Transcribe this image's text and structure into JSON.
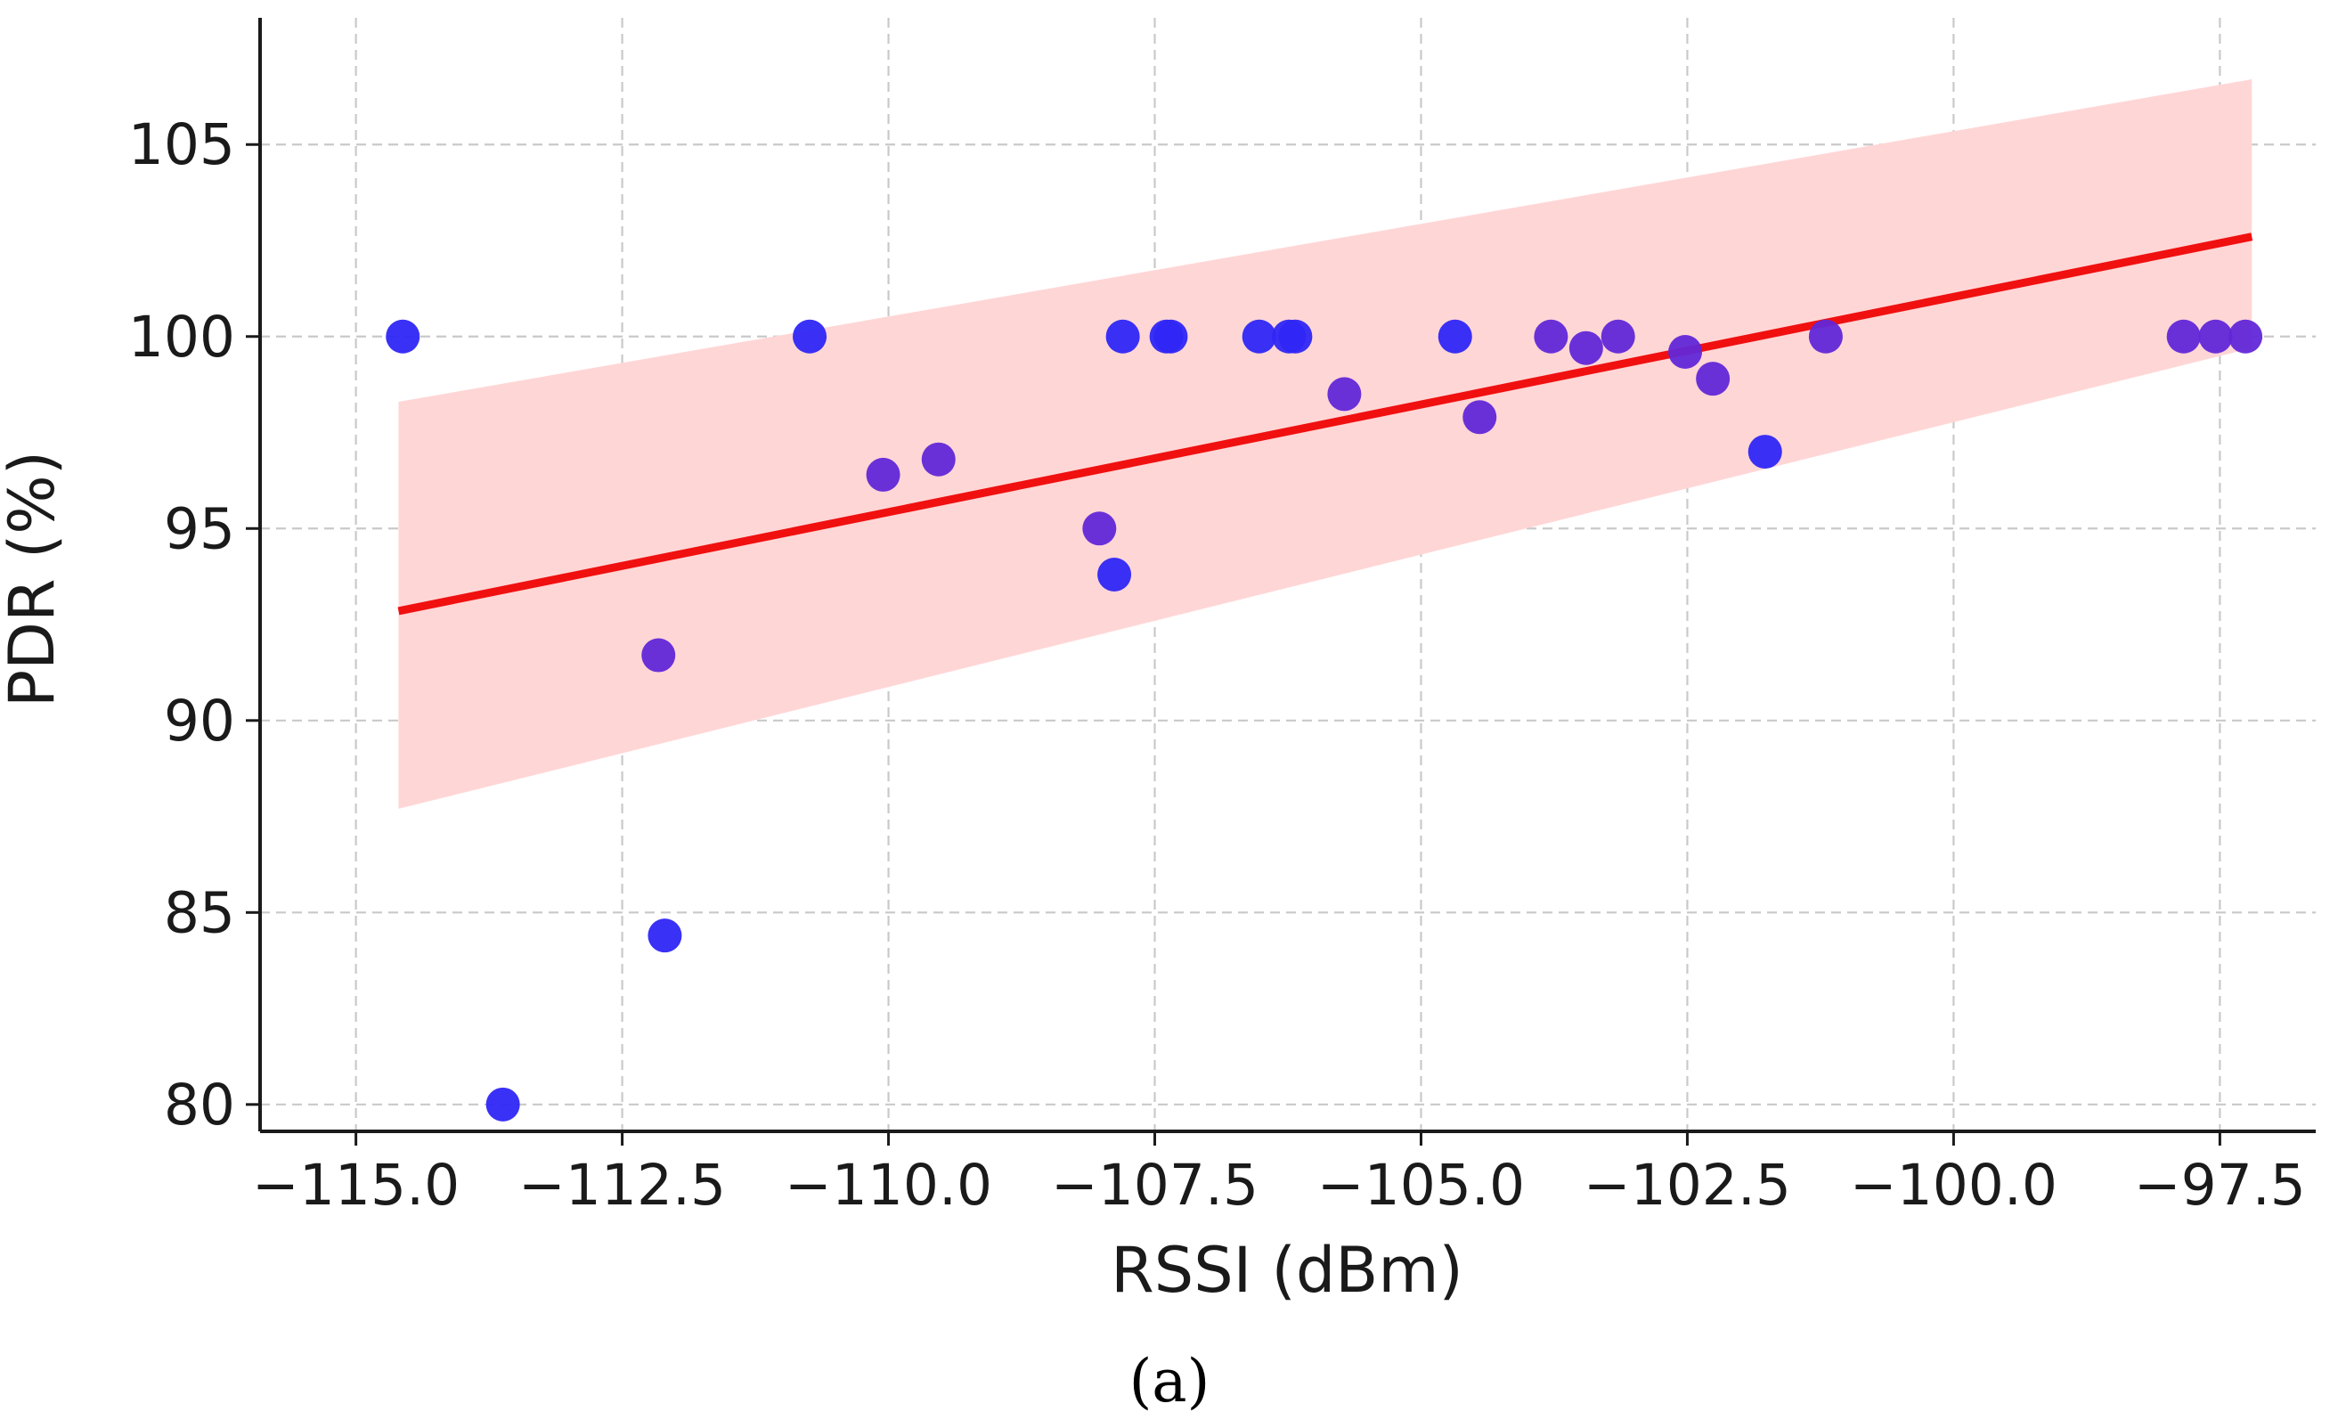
{
  "chart_data": {
    "type": "scatter",
    "panel_label": "(a)",
    "xlabel": "RSSI (dBm)",
    "ylabel": "PDR (%)",
    "xlim": [
      -115.9,
      -96.6
    ],
    "ylim": [
      79.3,
      108.3
    ],
    "xticks": [
      -115.0,
      -112.5,
      -110.0,
      -107.5,
      -105.0,
      -102.5,
      -100.0,
      -97.5
    ],
    "xtick_labels": [
      "−115.0",
      "−112.5",
      "−110.0",
      "−107.5",
      "−105.0",
      "−102.5",
      "−100.0",
      "−97.5"
    ],
    "yticks": [
      80,
      85,
      90,
      95,
      100,
      105
    ],
    "ytick_labels": [
      "80",
      "85",
      "90",
      "95",
      "100",
      "105"
    ],
    "grid": true,
    "grid_style": "dashed",
    "colors": {
      "point_blue": "#2f26f5",
      "point_purple": "#6227d8",
      "fit_line": "#f01010",
      "confidence_band": "#ffd6d6",
      "grid": "#c9c9c9",
      "axis": "#1a1a1a"
    },
    "series": [
      {
        "points": [
          {
            "x": -114.56,
            "y": 100.0,
            "c": "blue"
          },
          {
            "x": -113.62,
            "y": 80.0,
            "c": "blue"
          },
          {
            "x": -112.16,
            "y": 91.7,
            "c": "purple"
          },
          {
            "x": -112.1,
            "y": 84.4,
            "c": "blue"
          },
          {
            "x": -110.74,
            "y": 100.0,
            "c": "blue"
          },
          {
            "x": -110.05,
            "y": 96.4,
            "c": "purple"
          },
          {
            "x": -109.53,
            "y": 96.8,
            "c": "purple"
          },
          {
            "x": -108.02,
            "y": 95.0,
            "c": "purple"
          },
          {
            "x": -107.88,
            "y": 93.8,
            "c": "blue"
          },
          {
            "x": -107.8,
            "y": 100.0,
            "c": "blue"
          },
          {
            "x": -107.39,
            "y": 100.0,
            "c": "blue"
          },
          {
            "x": -107.35,
            "y": 100.0,
            "c": "blue"
          },
          {
            "x": -106.52,
            "y": 100.0,
            "c": "blue"
          },
          {
            "x": -106.24,
            "y": 100.0,
            "c": "blue"
          },
          {
            "x": -106.18,
            "y": 100.0,
            "c": "blue"
          },
          {
            "x": -105.72,
            "y": 98.5,
            "c": "purple"
          },
          {
            "x": -104.68,
            "y": 100.0,
            "c": "blue"
          },
          {
            "x": -104.45,
            "y": 97.9,
            "c": "purple"
          },
          {
            "x": -103.78,
            "y": 100.0,
            "c": "purple"
          },
          {
            "x": -103.45,
            "y": 99.7,
            "c": "purple"
          },
          {
            "x": -103.15,
            "y": 100.0,
            "c": "purple"
          },
          {
            "x": -102.52,
            "y": 99.6,
            "c": "purple"
          },
          {
            "x": -102.26,
            "y": 98.9,
            "c": "purple"
          },
          {
            "x": -101.77,
            "y": 97.0,
            "c": "blue"
          },
          {
            "x": -101.2,
            "y": 100.0,
            "c": "purple"
          },
          {
            "x": -97.84,
            "y": 100.0,
            "c": "purple"
          },
          {
            "x": -97.54,
            "y": 100.0,
            "c": "purple"
          },
          {
            "x": -97.26,
            "y": 100.0,
            "c": "purple"
          }
        ]
      }
    ],
    "regression": {
      "x": [
        -114.6,
        -97.2
      ],
      "y": [
        92.85,
        102.6
      ]
    },
    "confidence_band": {
      "x": [
        -114.6,
        -97.2
      ],
      "lower": [
        87.7,
        99.7
      ],
      "upper": [
        98.3,
        106.7
      ]
    }
  }
}
